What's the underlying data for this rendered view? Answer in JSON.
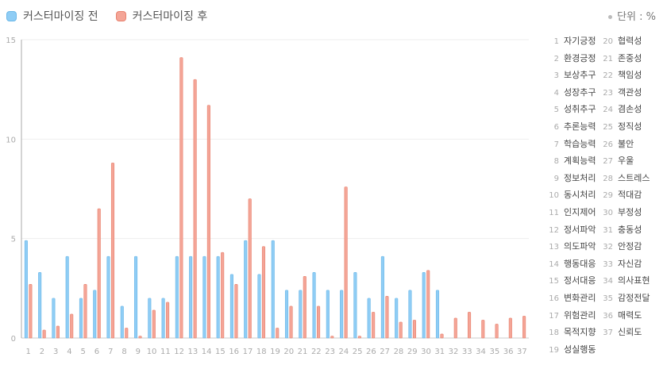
{
  "legend": {
    "before_label": "커스터마이징 전",
    "after_label": "커스터마이징 후",
    "before_color": "#8fcdf5",
    "after_color": "#f4a597"
  },
  "unit_label": "단위 : %",
  "chart_data": {
    "type": "bar",
    "categories": [
      "1",
      "2",
      "3",
      "4",
      "5",
      "6",
      "7",
      "8",
      "9",
      "10",
      "11",
      "12",
      "13",
      "14",
      "15",
      "16",
      "17",
      "18",
      "19",
      "20",
      "21",
      "22",
      "23",
      "24",
      "25",
      "26",
      "27",
      "28",
      "29",
      "30",
      "31",
      "32",
      "33",
      "34",
      "35",
      "36",
      "37"
    ],
    "series": [
      {
        "name": "커스터마이징 전",
        "values": [
          4.9,
          3.3,
          2.0,
          4.1,
          2.0,
          2.4,
          4.1,
          1.6,
          4.1,
          2.0,
          2.0,
          4.1,
          4.1,
          4.1,
          4.1,
          3.2,
          4.9,
          3.2,
          4.9,
          2.4,
          2.4,
          3.3,
          2.4,
          2.4,
          3.3,
          2.0,
          4.1,
          2.0,
          2.4,
          3.3,
          2.4,
          0,
          0,
          0,
          0,
          0,
          0
        ]
      },
      {
        "name": "커스터마이징 후",
        "values": [
          2.7,
          0.4,
          0.6,
          1.2,
          2.7,
          6.5,
          8.8,
          0.5,
          0.1,
          1.4,
          1.8,
          14.1,
          13.0,
          11.7,
          4.3,
          2.7,
          7.0,
          4.6,
          0.5,
          1.6,
          3.1,
          1.6,
          0.1,
          7.6,
          0.1,
          1.3,
          2.1,
          0.8,
          0.9,
          3.4,
          0.2,
          1.0,
          1.3,
          0.9,
          0.7,
          1.0,
          1.1
        ]
      }
    ],
    "ylim": [
      0,
      15
    ],
    "yticks": [
      0,
      5,
      10,
      15
    ],
    "grid": true,
    "legend_position": "top-left"
  },
  "index_list": [
    "자기긍정",
    "환경긍정",
    "보상추구",
    "성장추구",
    "성취추구",
    "추론능력",
    "학습능력",
    "계획능력",
    "정보처리",
    "동시처리",
    "인지제어",
    "정서파악",
    "의도파악",
    "행동대응",
    "정서대응",
    "변화관리",
    "위험관리",
    "목적지향",
    "성실행동",
    "협력성",
    "존중성",
    "책임성",
    "객관성",
    "겸손성",
    "정직성",
    "불안",
    "우울",
    "스트레스",
    "적대감",
    "부정성",
    "충동성",
    "안정감",
    "자신감",
    "의사표현",
    "감정전달",
    "매력도",
    "신뢰도"
  ]
}
